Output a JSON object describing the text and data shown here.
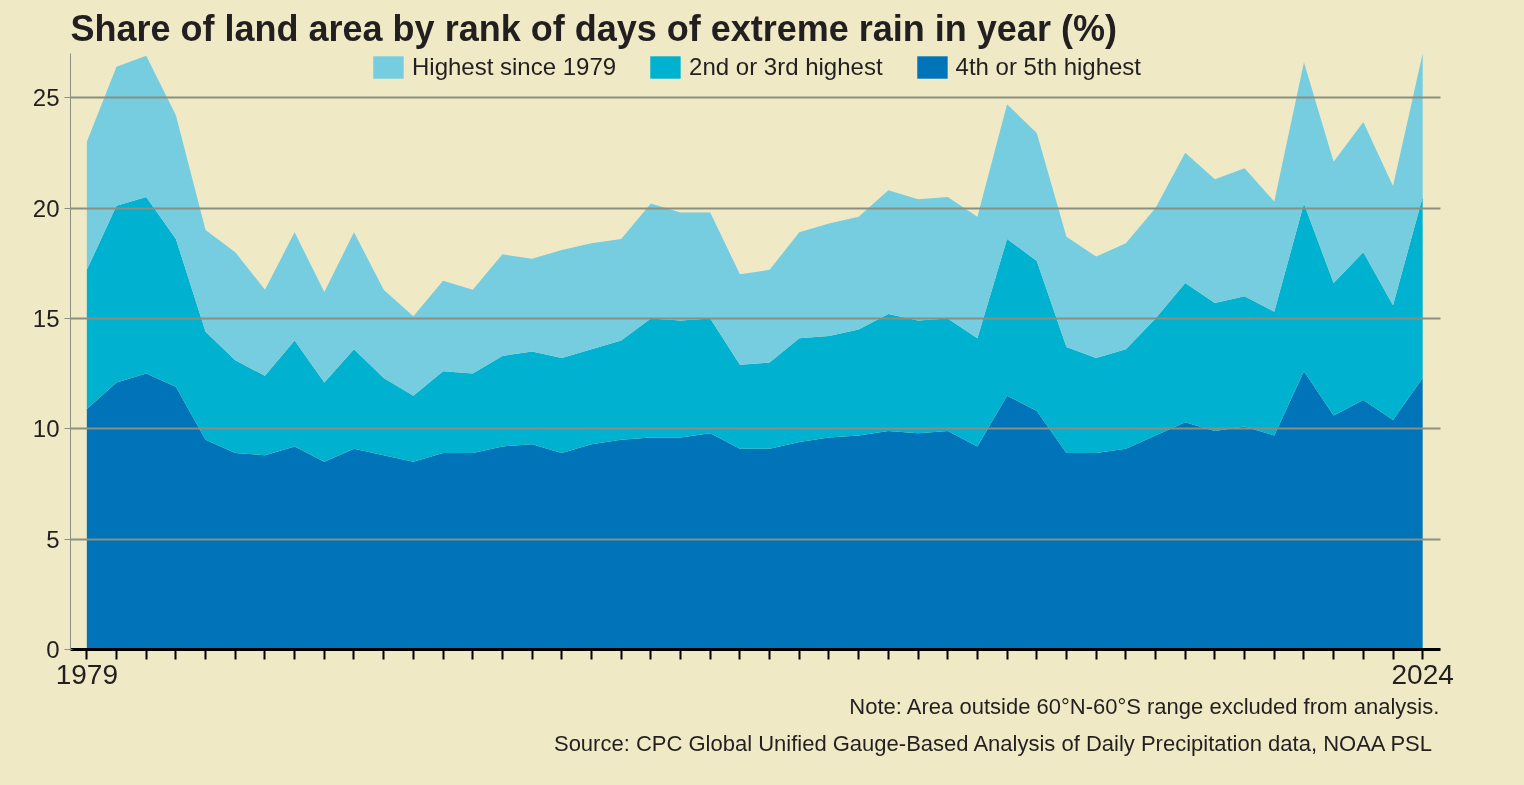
{
  "chart_data": {
    "type": "area",
    "stacked": true,
    "title": "Share of land area by rank of days of extreme rain in year (%)",
    "x": [
      1979,
      1980,
      1981,
      1982,
      1983,
      1984,
      1985,
      1986,
      1987,
      1988,
      1989,
      1990,
      1991,
      1992,
      1993,
      1994,
      1995,
      1996,
      1997,
      1998,
      1999,
      2000,
      2001,
      2002,
      2003,
      2004,
      2005,
      2006,
      2007,
      2008,
      2009,
      2010,
      2011,
      2012,
      2013,
      2014,
      2015,
      2016,
      2017,
      2018,
      2019,
      2020,
      2021,
      2022,
      2023,
      2024
    ],
    "series": [
      {
        "name": "4th or 5th highest",
        "color": "#0073b9",
        "values": [
          10.9,
          12.1,
          12.5,
          11.9,
          9.5,
          8.9,
          8.8,
          9.2,
          8.5,
          9.1,
          8.8,
          8.5,
          8.9,
          8.9,
          9.2,
          9.3,
          8.9,
          9.3,
          9.5,
          9.6,
          9.6,
          9.8,
          9.1,
          9.1,
          9.4,
          9.6,
          9.7,
          9.9,
          9.8,
          9.9,
          9.2,
          11.5,
          10.8,
          8.9,
          8.9,
          9.1,
          9.7,
          10.3,
          9.9,
          10.1,
          9.7,
          12.6,
          10.6,
          11.3,
          10.4,
          12.3
        ]
      },
      {
        "name": "2nd or 3rd highest",
        "color": "#00b2cf",
        "values": [
          6.3,
          8.0,
          8.0,
          6.7,
          4.9,
          4.2,
          3.6,
          4.8,
          3.6,
          4.5,
          3.5,
          3.0,
          3.7,
          3.6,
          4.1,
          4.2,
          4.3,
          4.3,
          4.5,
          5.4,
          5.3,
          5.2,
          3.8,
          3.9,
          4.7,
          4.6,
          4.8,
          5.3,
          5.1,
          5.1,
          4.9,
          7.1,
          6.8,
          4.8,
          4.3,
          4.5,
          5.3,
          6.3,
          5.8,
          5.9,
          5.6,
          7.6,
          6.0,
          6.7,
          5.2,
          8.2
        ]
      },
      {
        "name": "Highest since 1979",
        "color": "#76cde0",
        "values": [
          5.8,
          6.3,
          6.4,
          5.6,
          4.6,
          4.9,
          3.9,
          4.9,
          4.1,
          5.3,
          4.0,
          3.6,
          4.1,
          3.8,
          4.6,
          4.2,
          4.9,
          4.8,
          4.6,
          5.2,
          4.9,
          4.8,
          4.1,
          4.2,
          4.8,
          5.1,
          5.1,
          5.6,
          5.5,
          5.5,
          5.5,
          6.1,
          5.8,
          5.0,
          4.6,
          4.8,
          5.0,
          5.9,
          5.6,
          5.8,
          5.0,
          6.4,
          5.5,
          5.9,
          5.4,
          6.5
        ]
      }
    ],
    "xlim": [
      1978.45,
      2024.6
    ],
    "xticks": [
      {
        "value": 1979,
        "label": "1979"
      },
      {
        "value": 1980,
        "label": null
      },
      {
        "value": 1981,
        "label": null
      },
      {
        "value": 1982,
        "label": null
      },
      {
        "value": 1983,
        "label": null
      },
      {
        "value": 1984,
        "label": null
      },
      {
        "value": 1985,
        "label": null
      },
      {
        "value": 1986,
        "label": null
      },
      {
        "value": 1987,
        "label": null
      },
      {
        "value": 1988,
        "label": null
      },
      {
        "value": 1989,
        "label": null
      },
      {
        "value": 1990,
        "label": null
      },
      {
        "value": 1991,
        "label": null
      },
      {
        "value": 1992,
        "label": null
      },
      {
        "value": 1993,
        "label": null
      },
      {
        "value": 1994,
        "label": null
      },
      {
        "value": 1995,
        "label": null
      },
      {
        "value": 1996,
        "label": null
      },
      {
        "value": 1997,
        "label": null
      },
      {
        "value": 1998,
        "label": null
      },
      {
        "value": 1999,
        "label": null
      },
      {
        "value": 2000,
        "label": null
      },
      {
        "value": 2001,
        "label": null
      },
      {
        "value": 2002,
        "label": null
      },
      {
        "value": 2003,
        "label": null
      },
      {
        "value": 2004,
        "label": null
      },
      {
        "value": 2005,
        "label": null
      },
      {
        "value": 2006,
        "label": null
      },
      {
        "value": 2007,
        "label": null
      },
      {
        "value": 2008,
        "label": null
      },
      {
        "value": 2009,
        "label": null
      },
      {
        "value": 2010,
        "label": null
      },
      {
        "value": 2011,
        "label": null
      },
      {
        "value": 2012,
        "label": null
      },
      {
        "value": 2013,
        "label": null
      },
      {
        "value": 2014,
        "label": null
      },
      {
        "value": 2015,
        "label": null
      },
      {
        "value": 2016,
        "label": null
      },
      {
        "value": 2017,
        "label": null
      },
      {
        "value": 2018,
        "label": null
      },
      {
        "value": 2019,
        "label": null
      },
      {
        "value": 2020,
        "label": null
      },
      {
        "value": 2021,
        "label": null
      },
      {
        "value": 2022,
        "label": null
      },
      {
        "value": 2023,
        "label": null
      },
      {
        "value": 2024,
        "label": "2024"
      }
    ],
    "ylim": [
      0,
      27
    ],
    "yticks": [
      0,
      5,
      10,
      15,
      20,
      25
    ],
    "grid": "y",
    "legend": "top",
    "annotations": [
      "Note: Area outside 60°N-60°S range excluded from analysis.",
      "Source:  CPC Global Unified Gauge-Based Analysis of Daily Precipitation data, NOAA PSL"
    ]
  }
}
